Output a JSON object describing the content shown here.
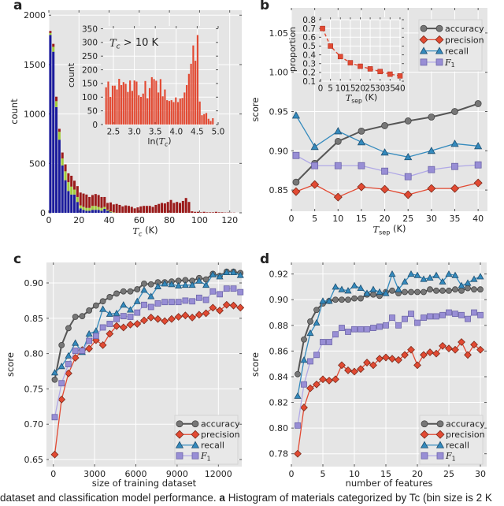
{
  "colors": {
    "panel_bg": "#e5e5e5",
    "grid": "#ffffff",
    "hist_blue": "#1a1a9c",
    "hist_green": "#a2cc3a",
    "hist_red": "#9b1b1b",
    "inset_bar": "#e24a33",
    "accuracy": "#777777",
    "precision": "#e24a33",
    "recall": "#348abd",
    "f1": "#988ed5"
  },
  "caption": {
    "lead": "dataset and classification model performance.",
    "panel": "a",
    "text": "Histogram of materials categorized by Tc (bin size is 2 K"
  },
  "chart_data": [
    {
      "panel_label": "a",
      "type": "bar",
      "stacked": true,
      "xlabel": "Tc (K)",
      "ylabel": "count",
      "xlim": [
        0,
        128
      ],
      "ylim": [
        0,
        2050
      ],
      "xticks": [
        0,
        20,
        40,
        60,
        80,
        100,
        120
      ],
      "yticks": [
        0,
        500,
        1000,
        1500,
        2000
      ],
      "grid": true,
      "bin_start": 0,
      "bin_width": 2,
      "series": [
        {
          "color_key": "hist_blue",
          "values": [
            1800,
            1630,
            1070,
            740,
            480,
            330,
            220,
            185,
            185,
            110,
            45,
            30,
            20,
            20,
            30,
            30,
            30,
            20,
            40,
            20,
            5,
            0
          ]
        },
        {
          "color_key": "hist_green",
          "values": [
            20,
            50,
            60,
            80,
            70,
            90,
            90,
            80,
            50,
            50,
            30,
            30,
            30,
            30,
            40,
            40,
            30,
            30,
            20,
            10,
            10,
            5
          ]
        },
        {
          "color_key": "hist_red",
          "values": [
            20,
            30,
            45,
            30,
            60,
            70,
            90,
            110,
            90,
            110,
            130,
            135,
            135,
            110,
            110,
            120,
            120,
            110,
            100,
            70,
            90,
            80,
            90,
            80,
            65,
            75,
            70,
            60,
            45,
            55,
            65,
            70,
            70,
            70,
            60,
            80,
            90,
            100,
            95,
            110,
            130,
            100,
            110,
            100,
            120,
            150,
            110,
            15,
            10,
            10,
            5,
            10,
            5,
            5,
            5,
            10,
            5,
            5,
            3,
            3,
            2,
            2
          ]
        }
      ],
      "inset": {
        "type": "bar",
        "annotation": "Tc > 10 K",
        "xlabel": "ln(Tc)",
        "ylabel": "count",
        "xlim": [
          2.2,
          5.0
        ],
        "ylim": [
          0,
          360
        ],
        "xticks": [
          2.5,
          3.0,
          3.5,
          4.0,
          4.5,
          5.0
        ],
        "yticks": [
          0,
          50,
          100,
          150,
          200,
          250,
          300,
          350
        ],
        "bin_start": 2.3,
        "bin_width": 0.052,
        "values": [
          136,
          157,
          101,
          142,
          142,
          128,
          167,
          144,
          155,
          149,
          119,
          161,
          123,
          161,
          157,
          107,
          101,
          113,
          159,
          96,
          133,
          173,
          166,
          160,
          117,
          166,
          103,
          128,
          89,
          86,
          89,
          82,
          99,
          82,
          95,
          97,
          117,
          144,
          185,
          222,
          289,
          233,
          327,
          84,
          34,
          38,
          42,
          21,
          13,
          23
        ]
      }
    },
    {
      "panel_label": "b",
      "type": "line",
      "xlabel": "Tsep (K)",
      "ylabel": "score",
      "xlim": [
        0,
        42
      ],
      "ylim": [
        0.823,
        1.082
      ],
      "xticks": [
        0,
        5,
        10,
        15,
        20,
        25,
        30,
        35,
        40
      ],
      "yticks": [
        0.85,
        0.9,
        0.95,
        1.0,
        1.05
      ],
      "legend": "top-right",
      "grid": true,
      "x": [
        1,
        5,
        10,
        15,
        20,
        25,
        30,
        35,
        40
      ],
      "series": [
        {
          "name": "accuracy",
          "marker": "circle",
          "values": [
            0.86,
            0.884,
            0.912,
            0.925,
            0.932,
            0.938,
            0.943,
            0.95,
            0.96
          ]
        },
        {
          "name": "precision",
          "marker": "diamond",
          "values": [
            0.848,
            0.857,
            0.841,
            0.854,
            0.851,
            0.844,
            0.852,
            0.852,
            0.859
          ]
        },
        {
          "name": "recall",
          "marker": "triangle",
          "values": [
            0.945,
            0.905,
            0.925,
            0.911,
            0.898,
            0.892,
            0.9,
            0.909,
            0.906
          ]
        },
        {
          "name": "F1",
          "marker": "square",
          "values": [
            0.894,
            0.881,
            0.881,
            0.881,
            0.874,
            0.867,
            0.876,
            0.88,
            0.882
          ]
        }
      ],
      "inset": {
        "type": "line",
        "xlabel": "Tsep (K)",
        "ylabel": "proportion",
        "xlim": [
          -0.8,
          42
        ],
        "ylim": [
          0.1,
          0.827
        ],
        "xticks": [
          0,
          5,
          10,
          15,
          20,
          25,
          30,
          35,
          40
        ],
        "yticks": [
          0.1,
          0.2,
          0.3,
          0.4,
          0.5,
          0.6,
          0.7,
          0.8
        ],
        "x": [
          1,
          5,
          10,
          15,
          20,
          25,
          30,
          35,
          40
        ],
        "values": [
          0.7,
          0.5,
          0.38,
          0.31,
          0.27,
          0.24,
          0.21,
          0.18,
          0.16
        ]
      }
    },
    {
      "panel_label": "c",
      "type": "line",
      "xlabel": "size of training dataset",
      "ylabel": "score",
      "xlim": [
        -500,
        13700
      ],
      "ylim": [
        0.64,
        0.929
      ],
      "xticks": [
        0,
        3000,
        6000,
        9000,
        12000
      ],
      "yticks": [
        0.65,
        0.7,
        0.75,
        0.8,
        0.85,
        0.9
      ],
      "legend": "bottom-right",
      "grid": true,
      "x": [
        100,
        600,
        1100,
        1600,
        2100,
        2600,
        3100,
        3600,
        4100,
        4600,
        5100,
        5600,
        6100,
        6600,
        7100,
        7600,
        8100,
        8600,
        9100,
        9600,
        10100,
        10600,
        11100,
        11600,
        12100,
        12600,
        13100,
        13600
      ],
      "series": [
        {
          "name": "accuracy",
          "marker": "circle",
          "values": [
            0.763,
            0.812,
            0.836,
            0.852,
            0.853,
            0.861,
            0.868,
            0.874,
            0.88,
            0.885,
            0.888,
            0.888,
            0.891,
            0.899,
            0.898,
            0.901,
            0.901,
            0.902,
            0.903,
            0.904,
            0.903,
            0.907,
            0.905,
            0.913,
            0.91,
            0.916,
            0.916,
            0.914
          ]
        },
        {
          "name": "precision",
          "marker": "diamond",
          "values": [
            0.657,
            0.735,
            0.772,
            0.794,
            0.805,
            0.807,
            0.819,
            0.812,
            0.828,
            0.839,
            0.837,
            0.841,
            0.842,
            0.847,
            0.851,
            0.849,
            0.846,
            0.849,
            0.852,
            0.854,
            0.851,
            0.855,
            0.857,
            0.865,
            0.861,
            0.869,
            0.868,
            0.865
          ]
        },
        {
          "name": "recall",
          "marker": "triangle",
          "values": [
            0.773,
            0.782,
            0.797,
            0.815,
            0.802,
            0.828,
            0.832,
            0.863,
            0.856,
            0.857,
            0.869,
            0.862,
            0.874,
            0.89,
            0.881,
            0.895,
            0.899,
            0.898,
            0.896,
            0.897,
            0.897,
            0.903,
            0.897,
            0.912,
            0.909,
            0.915,
            0.915,
            0.911
          ]
        },
        {
          "name": "F1",
          "marker": "square",
          "values": [
            0.71,
            0.758,
            0.785,
            0.804,
            0.804,
            0.818,
            0.825,
            0.837,
            0.842,
            0.849,
            0.853,
            0.852,
            0.858,
            0.869,
            0.866,
            0.871,
            0.873,
            0.873,
            0.873,
            0.875,
            0.874,
            0.879,
            0.876,
            0.888,
            0.884,
            0.892,
            0.892,
            0.887
          ]
        }
      ]
    },
    {
      "panel_label": "d",
      "type": "line",
      "xlabel": "number of features",
      "ylabel": "score",
      "xlim": [
        0,
        31
      ],
      "ylim": [
        0.77,
        0.929
      ],
      "xticks": [
        0,
        5,
        10,
        15,
        20,
        25,
        30
      ],
      "yticks": [
        0.78,
        0.8,
        0.82,
        0.84,
        0.86,
        0.88,
        0.9,
        0.92
      ],
      "legend": "bottom-right",
      "grid": true,
      "x": [
        1,
        2,
        3,
        4,
        5,
        6,
        7,
        8,
        9,
        10,
        11,
        12,
        13,
        14,
        15,
        16,
        17,
        18,
        19,
        20,
        21,
        22,
        23,
        24,
        25,
        26,
        27,
        28,
        29,
        30
      ],
      "series": [
        {
          "name": "accuracy",
          "marker": "circle",
          "values": [
            0.842,
            0.869,
            0.883,
            0.892,
            0.897,
            0.899,
            0.9,
            0.9,
            0.9,
            0.901,
            0.901,
            0.904,
            0.904,
            0.903,
            0.906,
            0.907,
            0.905,
            0.906,
            0.906,
            0.906,
            0.906,
            0.908,
            0.907,
            0.907,
            0.907,
            0.908,
            0.907,
            0.909,
            0.908,
            0.908
          ]
        },
        {
          "name": "precision",
          "marker": "diamond",
          "values": [
            0.78,
            0.816,
            0.831,
            0.834,
            0.838,
            0.837,
            0.838,
            0.849,
            0.845,
            0.844,
            0.846,
            0.851,
            0.849,
            0.854,
            0.855,
            0.854,
            0.853,
            0.857,
            0.861,
            0.849,
            0.857,
            0.859,
            0.858,
            0.864,
            0.862,
            0.861,
            0.867,
            0.857,
            0.865,
            0.861
          ]
        },
        {
          "name": "recall",
          "marker": "triangle",
          "values": [
            0.825,
            0.853,
            0.874,
            0.882,
            0.899,
            0.899,
            0.91,
            0.908,
            0.907,
            0.911,
            0.909,
            0.905,
            0.908,
            0.906,
            0.905,
            0.92,
            0.908,
            0.914,
            0.92,
            0.919,
            0.916,
            0.917,
            0.919,
            0.914,
            0.92,
            0.919,
            0.911,
            0.913,
            0.916,
            0.918
          ]
        },
        {
          "name": "F1",
          "marker": "square",
          "values": [
            0.802,
            0.834,
            0.852,
            0.857,
            0.867,
            0.867,
            0.873,
            0.878,
            0.875,
            0.877,
            0.877,
            0.877,
            0.878,
            0.879,
            0.88,
            0.886,
            0.88,
            0.885,
            0.889,
            0.882,
            0.886,
            0.887,
            0.887,
            0.888,
            0.89,
            0.889,
            0.888,
            0.885,
            0.89,
            0.888
          ]
        }
      ]
    }
  ]
}
